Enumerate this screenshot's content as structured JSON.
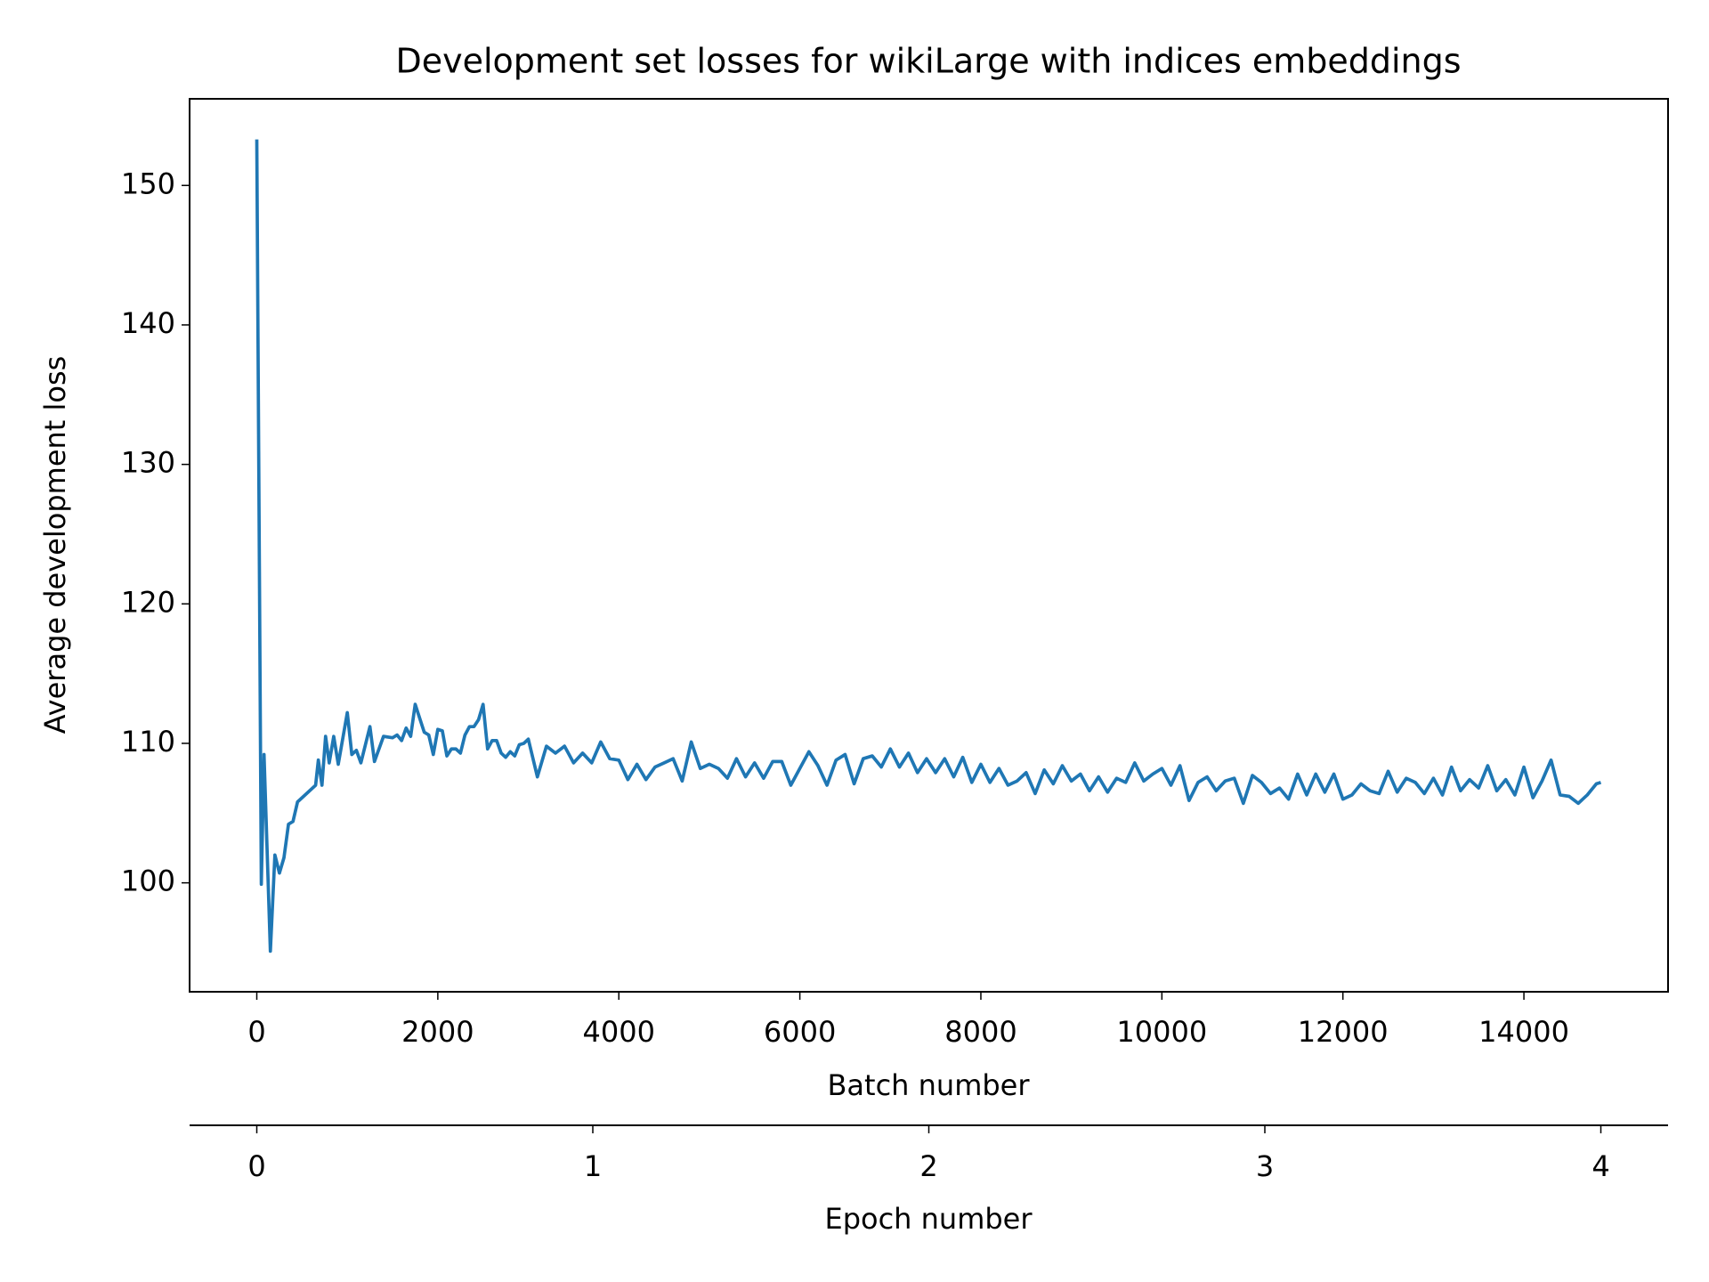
{
  "chart_data": {
    "type": "line",
    "title": "Development set losses for wikiLarge with indices embeddings",
    "xlabel": "Batch number",
    "ylabel": "Average development loss",
    "x2label": "Epoch number",
    "x": [
      0,
      50,
      80,
      150,
      200,
      250,
      300,
      350,
      400,
      450,
      550,
      650,
      680,
      720,
      760,
      800,
      850,
      900,
      1000,
      1050,
      1100,
      1150,
      1250,
      1300,
      1400,
      1500,
      1550,
      1600,
      1650,
      1700,
      1750,
      1800,
      1850,
      1900,
      1950,
      2000,
      2050,
      2100,
      2150,
      2200,
      2250,
      2300,
      2350,
      2400,
      2450,
      2500,
      2550,
      2600,
      2650,
      2700,
      2750,
      2800,
      2850,
      2900,
      2950,
      3000,
      3100,
      3200,
      3300,
      3400,
      3500,
      3600,
      3700,
      3800,
      3900,
      4000,
      4100,
      4200,
      4300,
      4400,
      4500,
      4600,
      4700,
      4800,
      4900,
      5000,
      5100,
      5200,
      5300,
      5400,
      5500,
      5600,
      5700,
      5800,
      5900,
      6000,
      6100,
      6200,
      6300,
      6400,
      6500,
      6600,
      6700,
      6800,
      6900,
      7000,
      7100,
      7200,
      7300,
      7400,
      7500,
      7600,
      7700,
      7800,
      7900,
      8000,
      8100,
      8200,
      8300,
      8400,
      8500,
      8600,
      8700,
      8800,
      8900,
      9000,
      9100,
      9200,
      9300,
      9400,
      9500,
      9600,
      9700,
      9800,
      9900,
      10000,
      10100,
      10200,
      10300,
      10400,
      10500,
      10600,
      10700,
      10800,
      10900,
      11000,
      11100,
      11200,
      11300,
      11400,
      11500,
      11600,
      11700,
      11800,
      11900,
      12000,
      12100,
      12200,
      12300,
      12400,
      12500,
      12600,
      12700,
      12800,
      12900,
      13000,
      13100,
      13200,
      13300,
      13400,
      13500,
      13600,
      13700,
      13800,
      13900,
      14000,
      14100,
      14200,
      14300,
      14400,
      14500,
      14600,
      14700,
      14800,
      14850
    ],
    "series": [
      {
        "color": "#1f77b4",
        "values": [
          153.3,
          99.9,
          109.2,
          95.1,
          102,
          100.7,
          101.8,
          104.2,
          104.4,
          105.8,
          106.4,
          107,
          108.8,
          107,
          110.5,
          108.6,
          110.5,
          108.5,
          112.2,
          109.2,
          109.5,
          108.6,
          111.2,
          108.7,
          110.5,
          110.4,
          110.6,
          110.2,
          111.1,
          110.5,
          112.8,
          111.8,
          110.8,
          110.6,
          109.2,
          111,
          110.9,
          109.1,
          109.6,
          109.6,
          109.3,
          110.6,
          111.2,
          111.2,
          111.7,
          112.8,
          109.6,
          110.2,
          110.2,
          109.3,
          109,
          109.4,
          109.1,
          109.9,
          110,
          110.3,
          107.6,
          109.8,
          109.3,
          109.8,
          108.6,
          109.3,
          108.6,
          110.1,
          108.9,
          108.8,
          107.4,
          108.5,
          107.4,
          108.3,
          108.6,
          108.9,
          107.3,
          110.1,
          108.2,
          108.5,
          108.2,
          107.5,
          108.9,
          107.6,
          108.6,
          107.5,
          108.7,
          108.7,
          107,
          108.2,
          109.4,
          108.4,
          107,
          108.8,
          109.2,
          107.1,
          108.9,
          109.1,
          108.3,
          109.6,
          108.3,
          109.3,
          107.9,
          108.9,
          107.9,
          108.9,
          107.6,
          109,
          107.2,
          108.5,
          107.2,
          108.2,
          107,
          107.3,
          107.9,
          106.4,
          108.1,
          107.1,
          108.4,
          107.3,
          107.8,
          106.6,
          107.6,
          106.5,
          107.5,
          107.2,
          108.6,
          107.3,
          107.8,
          108.2,
          107,
          108.4,
          105.9,
          107.2,
          107.6,
          106.6,
          107.3,
          107.5,
          105.7,
          107.7,
          107.2,
          106.4,
          106.8,
          106,
          107.8,
          106.3,
          107.8,
          106.5,
          107.8,
          106,
          106.3,
          107.1,
          106.6,
          106.4,
          108,
          106.5,
          107.5,
          107.2,
          106.4,
          107.5,
          106.3,
          108.3,
          106.6,
          107.4,
          106.8,
          108.4,
          106.6,
          107.4,
          106.3,
          108.3,
          106.1,
          107.3,
          108.8,
          106.3,
          106.2,
          105.7,
          106.3,
          107.1,
          107.2
        ]
      }
    ],
    "xlim": [
      -742.5,
      15592.5
    ],
    "ylim": [
      92.19,
      156.21
    ],
    "xticks": [
      0,
      2000,
      4000,
      6000,
      8000,
      10000,
      12000,
      14000
    ],
    "yticks": [
      100,
      110,
      120,
      130,
      140,
      150
    ],
    "x2lim": [
      -0.2,
      4.2
    ],
    "x2ticks": [
      0,
      1,
      2,
      3,
      4
    ]
  }
}
